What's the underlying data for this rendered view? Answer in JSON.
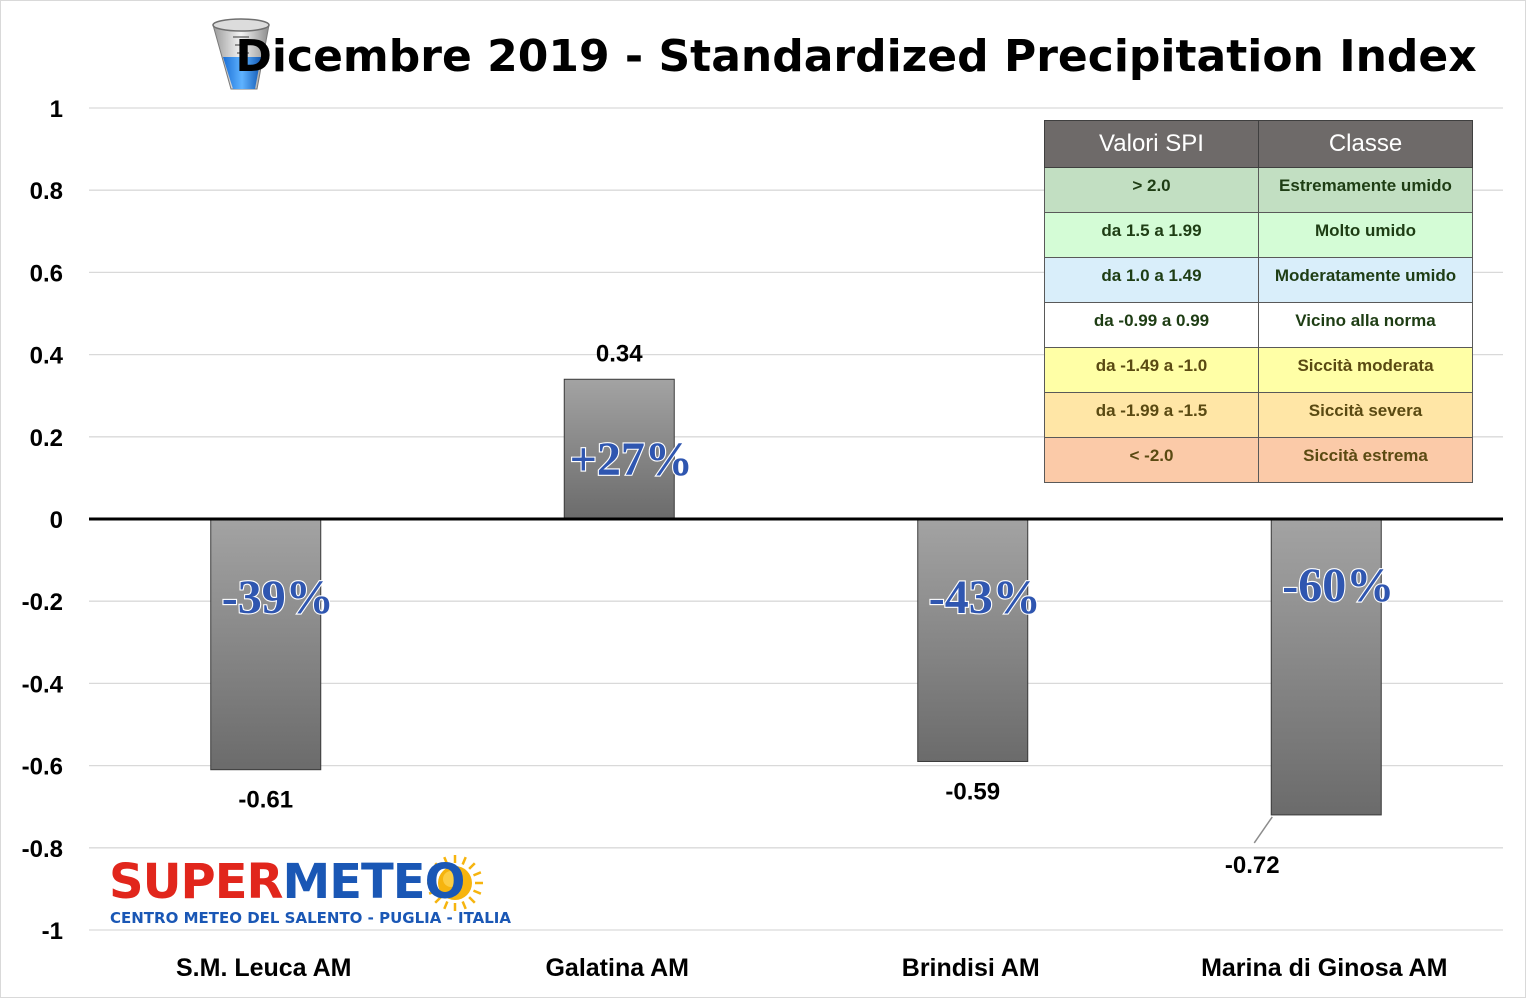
{
  "colors": {
    "bar_top": "#a3a3a3",
    "bar_bottom": "#6b6b6b",
    "pct_fill": "#2f56b0",
    "logo_red": "#e1261c",
    "logo_blue": "#1a57b5",
    "sun": "#f6b40e"
  },
  "icon": "rain-gauge-icon",
  "chart_data": {
    "type": "bar",
    "title": "Dicembre 2019 - Standardized Precipitation Index",
    "categories": [
      "S.M. Leuca AM",
      "Galatina AM",
      "Brindisi AM",
      "Marina di Ginosa AM"
    ],
    "values": [
      -0.61,
      0.34,
      -0.59,
      -0.72
    ],
    "value_labels": [
      "-0.61",
      "0.34",
      "-0.59",
      "-0.72"
    ],
    "percent_labels": [
      "-39%",
      "+27%",
      "-43%",
      "-60%"
    ],
    "ylim": [
      -1,
      1
    ],
    "yticks": [
      1,
      0.8,
      0.6,
      0.4,
      0.2,
      0,
      -0.2,
      -0.4,
      -0.6,
      -0.8,
      -1
    ],
    "ytick_labels": [
      "1",
      "0.8",
      "0.6",
      "0.4",
      "0.2",
      "0",
      "-0.2",
      "-0.4",
      "-0.6",
      "-0.8",
      "-1"
    ],
    "grid": true,
    "xlabel": "",
    "ylabel": ""
  },
  "legend_table": {
    "headers": [
      "Valori SPI",
      "Classe"
    ],
    "rows": [
      {
        "range": "> 2.0",
        "class": "Estremamente umido",
        "color": "#c2dfc2",
        "text_color": "#1e3d14"
      },
      {
        "range": "da 1.5 a 1.99",
        "class": "Molto umido",
        "color": "#d4fcd6",
        "text_color": "#1e3d14"
      },
      {
        "range": "da 1.0 a 1.49",
        "class": "Moderatamente umido",
        "color": "#d9eefa",
        "text_color": "#1e3d14"
      },
      {
        "range": "da -0.99 a 0.99",
        "class": "Vicino alla norma",
        "color": "#ffffff",
        "text_color": "#1e3d14"
      },
      {
        "range": "da -1.49 a -1.0",
        "class": "Siccità moderata",
        "color": "#ffffa6",
        "text_color": "#5a4a12"
      },
      {
        "range": "da -1.99 a -1.5",
        "class": "Siccità severa",
        "color": "#ffe6a6",
        "text_color": "#5a4a12"
      },
      {
        "range": "< -2.0",
        "class": "Siccità estrema",
        "color": "#fbcaa8",
        "text_color": "#5a4a12"
      }
    ]
  },
  "logo": {
    "part1": "SUPER",
    "part2": "METEO",
    "subtitle": "CENTRO METEO DEL SALENTO - PUGLIA - ITALIA"
  }
}
